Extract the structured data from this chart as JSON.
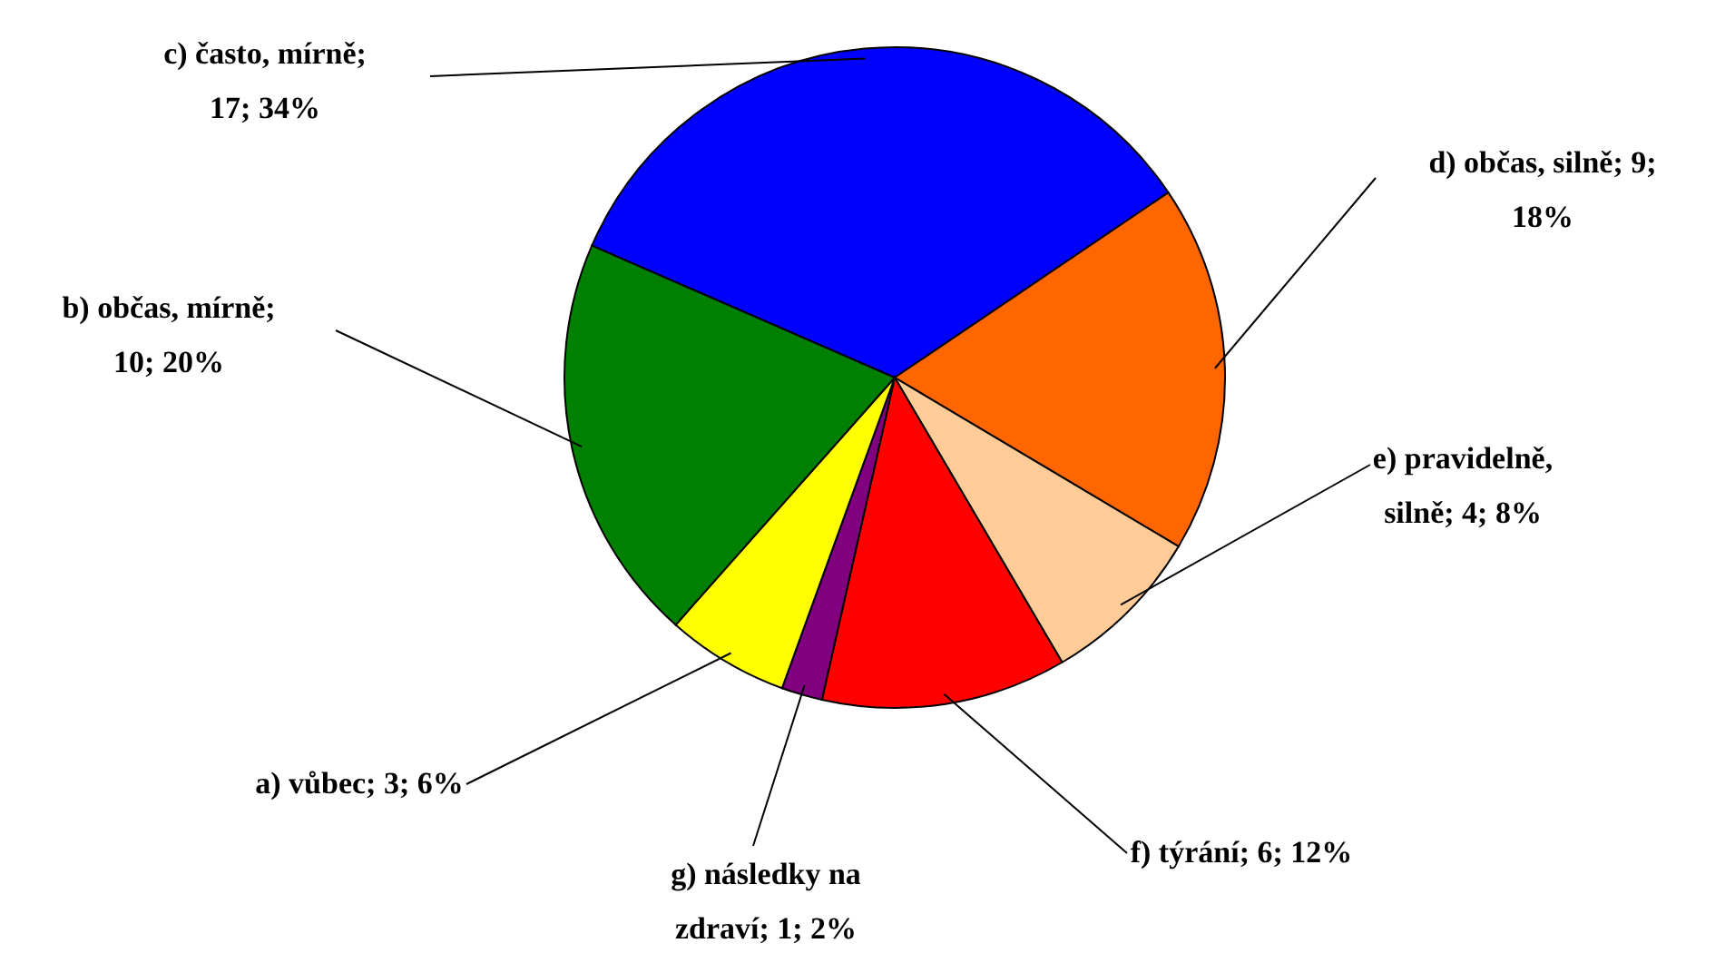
{
  "chart_data": {
    "type": "pie",
    "categories": [
      "c) často, mírně; 17; 34%",
      "d) občas, silně; 9; 18%",
      "e) pravidelně, silně; 4; 8%",
      "f) týrání; 6; 12%",
      "g) následky na zdraví; 1; 2%",
      "a) vůbec; 3; 6%",
      "b) občas, mírně; 10; 20%"
    ],
    "values": [
      17,
      9,
      4,
      6,
      1,
      3,
      10
    ],
    "colors": [
      "#0000ff",
      "#ff6600",
      "#ffcc99",
      "#ff0000",
      "#800080",
      "#ffff00",
      "#008000"
    ]
  }
}
